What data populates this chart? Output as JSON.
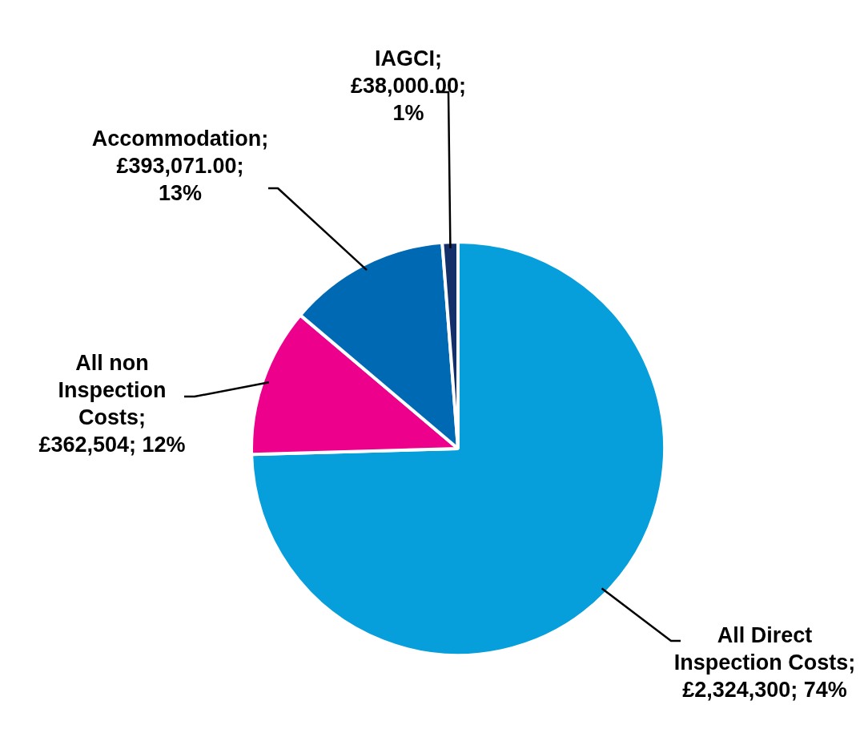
{
  "chart_data": {
    "type": "pie",
    "categories": [
      "All Direct Inspection Costs",
      "All non Inspection Costs",
      "Accommodation",
      "IAGCI"
    ],
    "values": [
      2324300,
      362504,
      393071,
      38000
    ],
    "value_labels": [
      "; £2,324,300; 74%",
      "; £362,504; 12%",
      "; £393,071.00; 13%",
      "; £38,000.00; 1%"
    ],
    "colors": [
      "#069fdb",
      "#ec008c",
      "#0069b4",
      "#13306a"
    ],
    "legend": false
  }
}
